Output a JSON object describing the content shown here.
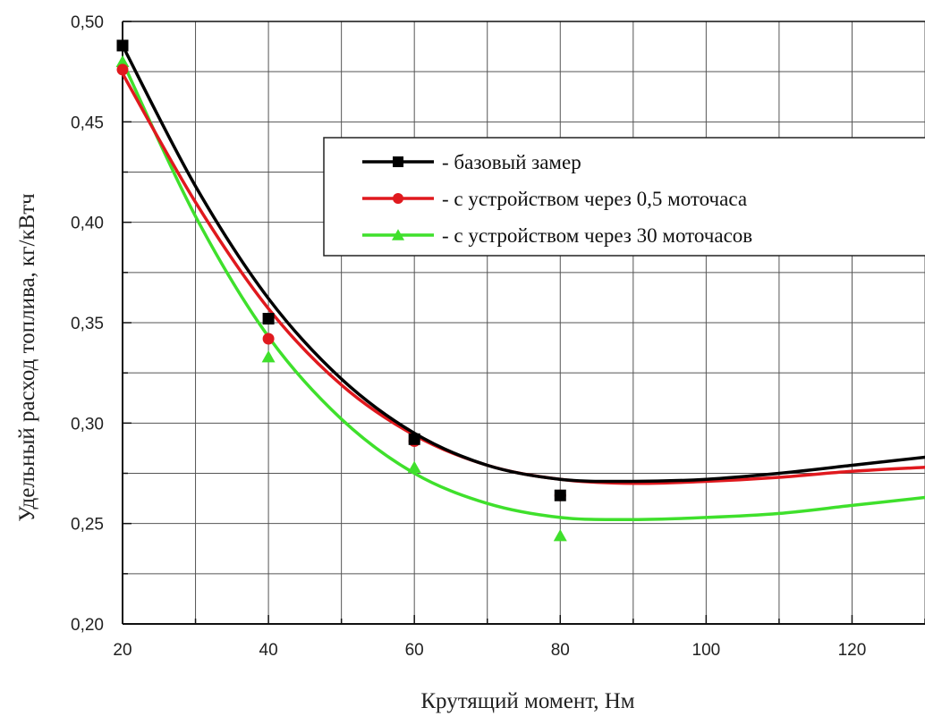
{
  "chart_data": {
    "type": "line",
    "title": "",
    "xlabel": "Крутящий момент, Нм",
    "ylabel": "Удельный расход топлива, кг/кВтч",
    "xlim": [
      20,
      130
    ],
    "ylim": [
      0.2,
      0.5
    ],
    "x_ticks": [
      "20",
      "40",
      "60",
      "80",
      "100",
      "120"
    ],
    "y_ticks": [
      "0,20",
      "0,25",
      "0,30",
      "0,35",
      "0,40",
      "0,45",
      "0,50"
    ],
    "grid": true,
    "legend_position": "top-right",
    "series": [
      {
        "name": "- базовый замер",
        "color": "#000000",
        "marker": "square",
        "points": [
          [
            20,
            0.488
          ],
          [
            40,
            0.352
          ],
          [
            60,
            0.292
          ],
          [
            80,
            0.264
          ]
        ],
        "curve": [
          [
            20,
            0.488
          ],
          [
            30,
            0.418
          ],
          [
            40,
            0.362
          ],
          [
            50,
            0.322
          ],
          [
            60,
            0.295
          ],
          [
            70,
            0.279
          ],
          [
            80,
            0.272
          ],
          [
            90,
            0.271
          ],
          [
            100,
            0.272
          ],
          [
            110,
            0.275
          ],
          [
            120,
            0.279
          ],
          [
            130,
            0.283
          ]
        ]
      },
      {
        "name": "- с устройством через 0,5 моточаса",
        "color": "#e0191e",
        "marker": "circle",
        "points": [
          [
            20,
            0.476
          ],
          [
            40,
            0.342
          ],
          [
            60,
            0.291
          ],
          [
            80,
            0.264
          ]
        ],
        "curve": [
          [
            20,
            0.474
          ],
          [
            30,
            0.41
          ],
          [
            40,
            0.357
          ],
          [
            50,
            0.319
          ],
          [
            60,
            0.294
          ],
          [
            70,
            0.279
          ],
          [
            80,
            0.272
          ],
          [
            90,
            0.27
          ],
          [
            100,
            0.271
          ],
          [
            110,
            0.273
          ],
          [
            120,
            0.276
          ],
          [
            130,
            0.278
          ]
        ]
      },
      {
        "name": "- с устройством через 30 моточасов",
        "color": "#3fe02c",
        "marker": "triangle",
        "points": [
          [
            20,
            0.48
          ],
          [
            40,
            0.333
          ],
          [
            60,
            0.278
          ],
          [
            80,
            0.244
          ]
        ],
        "curve": [
          [
            20,
            0.48
          ],
          [
            30,
            0.403
          ],
          [
            40,
            0.343
          ],
          [
            50,
            0.302
          ],
          [
            60,
            0.275
          ],
          [
            70,
            0.26
          ],
          [
            80,
            0.253
          ],
          [
            90,
            0.252
          ],
          [
            100,
            0.253
          ],
          [
            110,
            0.255
          ],
          [
            120,
            0.259
          ],
          [
            130,
            0.263
          ]
        ]
      }
    ]
  }
}
